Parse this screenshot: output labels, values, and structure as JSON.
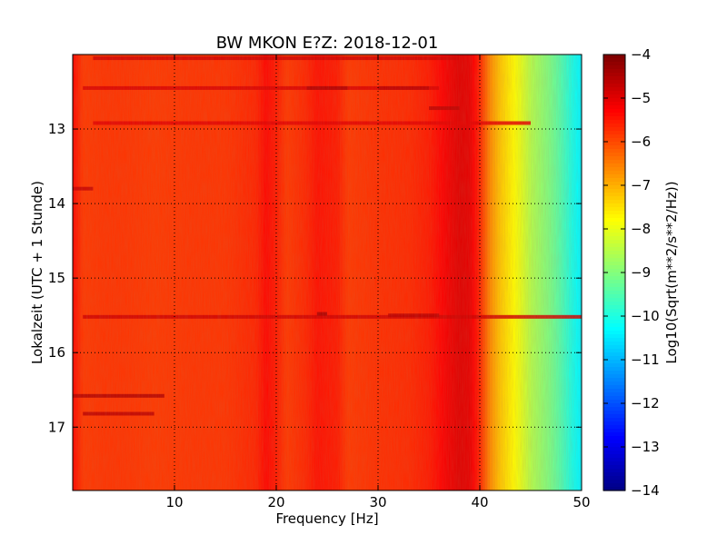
{
  "chart_data": {
    "type": "heatmap",
    "title": "BW MKON E?Z: 2018-12-01",
    "xlabel": "Frequency [Hz]",
    "ylabel": "Lokalzeit (UTC + 1 Stunde)",
    "xlim": [
      0,
      50
    ],
    "ylim": [
      17.85,
      12.0
    ],
    "xticks": [
      10,
      20,
      30,
      40,
      50
    ],
    "yticks": [
      13,
      14,
      15,
      16,
      17
    ],
    "grid": true,
    "colormap": "jet",
    "colorbar": {
      "label": "Log10(Sqrt(m**2/s**2/Hz))",
      "range": [
        -14,
        -4
      ],
      "ticks": [
        -4,
        -5,
        -6,
        -7,
        -8,
        -9,
        -10,
        -11,
        -12,
        -13,
        -14
      ]
    },
    "spectrum_profile": {
      "frequency_hz": [
        0,
        1,
        3,
        5,
        8,
        12,
        15,
        18,
        19,
        20,
        21,
        23,
        24,
        26,
        27,
        30,
        33,
        35,
        36,
        37,
        38,
        39,
        40,
        41,
        42,
        43,
        44,
        45,
        46,
        47,
        48,
        49,
        50
      ],
      "log_amplitude": [
        -5.3,
        -5.8,
        -5.75,
        -5.75,
        -5.8,
        -5.75,
        -5.75,
        -5.6,
        -5.3,
        -5.5,
        -5.8,
        -5.6,
        -5.4,
        -5.5,
        -5.8,
        -5.7,
        -5.65,
        -5.5,
        -5.3,
        -5.1,
        -4.95,
        -5.0,
        -5.6,
        -6.6,
        -7.2,
        -7.6,
        -8.0,
        -8.5,
        -8.8,
        -9.1,
        -9.5,
        -10.0,
        -10.4
      ]
    },
    "strong_bands": [
      {
        "time": 12.05,
        "freq_range": [
          2,
          38
        ],
        "log_amplitude": -4.8
      },
      {
        "time": 12.45,
        "freq_range": [
          1,
          36
        ],
        "log_amplitude": -4.9
      },
      {
        "time": 12.45,
        "freq_range": [
          23,
          27
        ],
        "log_amplitude": -4.5
      },
      {
        "time": 12.45,
        "freq_range": [
          30,
          35
        ],
        "log_amplitude": -4.6
      },
      {
        "time": 12.72,
        "freq_range": [
          35,
          38
        ],
        "log_amplitude": -4.6
      },
      {
        "time": 12.92,
        "freq_range": [
          2,
          45
        ],
        "log_amplitude": -5.0
      },
      {
        "time": 13.8,
        "freq_range": [
          0,
          2
        ],
        "log_amplitude": -4.7
      },
      {
        "time": 15.52,
        "freq_range": [
          1,
          50
        ],
        "log_amplitude": -4.8
      },
      {
        "time": 15.48,
        "freq_range": [
          24,
          25
        ],
        "log_amplitude": -4.4
      },
      {
        "time": 15.5,
        "freq_range": [
          31,
          36
        ],
        "log_amplitude": -4.6
      },
      {
        "time": 16.58,
        "freq_range": [
          0,
          9
        ],
        "log_amplitude": -4.5
      },
      {
        "time": 16.82,
        "freq_range": [
          1,
          8
        ],
        "log_amplitude": -4.6
      }
    ]
  }
}
